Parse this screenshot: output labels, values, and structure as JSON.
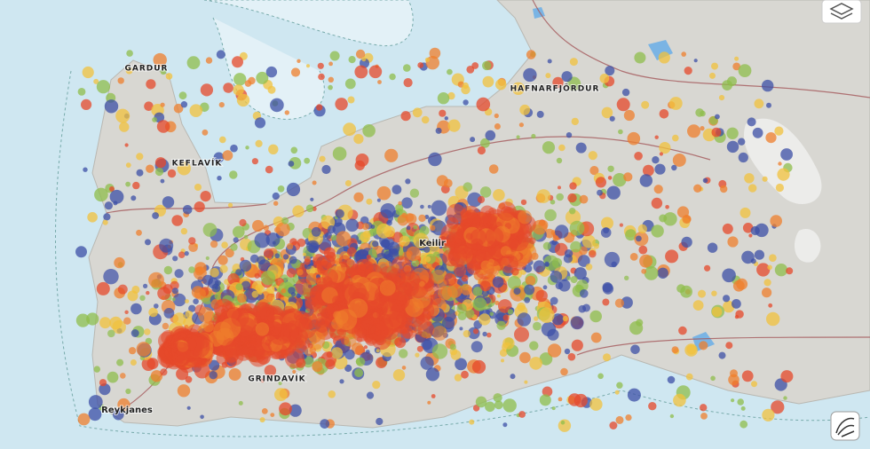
{
  "map": {
    "places": [
      "GARDUR",
      "KEFLAVÍK",
      "HAFNARFJÖRDUR",
      "Keilir",
      "GRINDAVÍK",
      "Reykjanes"
    ]
  }
}
